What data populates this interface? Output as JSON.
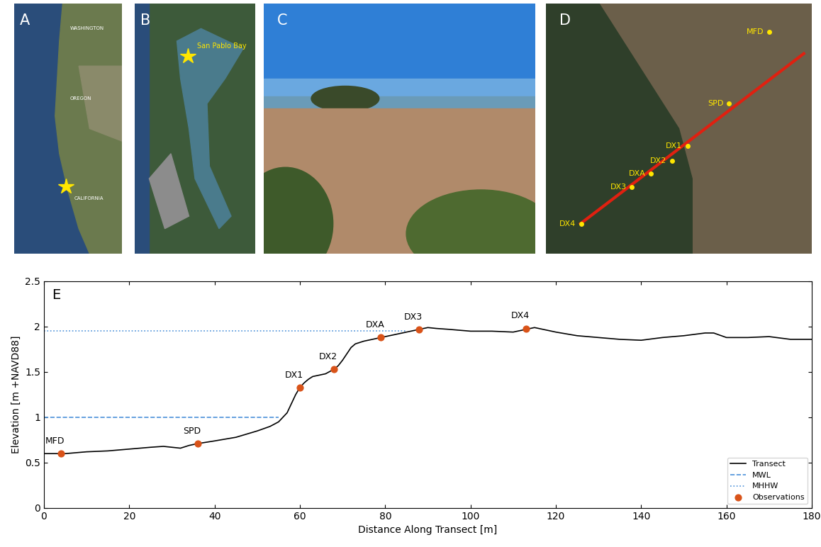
{
  "panels": {
    "A": {
      "label": "A",
      "texts": [
        "WASHINGTON",
        "OREGON",
        "CALIFORNIA"
      ]
    },
    "B": {
      "label": "B",
      "texts": [
        "San Pablo Bay"
      ]
    },
    "C": {
      "label": "C"
    },
    "D": {
      "label": "D",
      "points": [
        "MFD",
        "SPD",
        "DX1",
        "DX2",
        "DXA",
        "DX3",
        "DX4"
      ]
    }
  },
  "chart_data": {
    "type": "line",
    "panel_label": "E",
    "x_label": "Distance Along Transect [m]",
    "y_label": "Elevation [m +NAVD88]",
    "xlim": [
      0,
      180
    ],
    "xticks": [
      0,
      20,
      40,
      60,
      80,
      100,
      120,
      140,
      160,
      180
    ],
    "ylim": [
      0,
      2.5
    ],
    "yticks": [
      0,
      0.5,
      1,
      1.5,
      2,
      2.5
    ],
    "legend": "lower right",
    "series": [
      {
        "name": "Transect",
        "color": "#000000",
        "line_style": "solid",
        "x": [
          0,
          5,
          10,
          15,
          20,
          25,
          28,
          30,
          32,
          34,
          36,
          40,
          45,
          50,
          53,
          55,
          57,
          58,
          59,
          60,
          61,
          62,
          63,
          64,
          66,
          68,
          69,
          70,
          71,
          72,
          73,
          75,
          77,
          79,
          82,
          85,
          88,
          90,
          92,
          95,
          100,
          105,
          110,
          112,
          115,
          117,
          120,
          125,
          130,
          135,
          140,
          145,
          150,
          155,
          157,
          160,
          165,
          170,
          175,
          180
        ],
        "values": [
          0.6,
          0.6,
          0.62,
          0.63,
          0.65,
          0.67,
          0.68,
          0.67,
          0.66,
          0.69,
          0.71,
          0.74,
          0.78,
          0.85,
          0.9,
          0.95,
          1.05,
          1.15,
          1.25,
          1.33,
          1.38,
          1.42,
          1.45,
          1.46,
          1.48,
          1.53,
          1.57,
          1.63,
          1.7,
          1.77,
          1.81,
          1.84,
          1.86,
          1.88,
          1.91,
          1.94,
          1.97,
          1.99,
          1.98,
          1.97,
          1.95,
          1.95,
          1.94,
          1.96,
          1.99,
          1.97,
          1.94,
          1.9,
          1.88,
          1.86,
          1.85,
          1.88,
          1.9,
          1.93,
          1.93,
          1.88,
          1.88,
          1.89,
          1.86,
          1.86
        ]
      },
      {
        "name": "MWL",
        "color": "#4a90d9",
        "line_style": "dashed",
        "x": [
          0,
          55
        ],
        "values": [
          1.0,
          1.0
        ]
      },
      {
        "name": "MHHW",
        "color": "#4a90d9",
        "line_style": "dotted",
        "x": [
          0,
          85
        ],
        "values": [
          1.95,
          1.95
        ]
      },
      {
        "name": "Observations",
        "type": "scatter",
        "color": "#d95319",
        "marker": "o",
        "x": [
          4,
          36,
          60,
          68,
          79,
          88,
          113
        ],
        "values": [
          0.6,
          0.71,
          1.33,
          1.53,
          1.88,
          1.97,
          1.98
        ],
        "point_labels": [
          "MFD",
          "SPD",
          "DX1",
          "DX2",
          "DXA",
          "DX3",
          "DX4"
        ]
      }
    ]
  }
}
